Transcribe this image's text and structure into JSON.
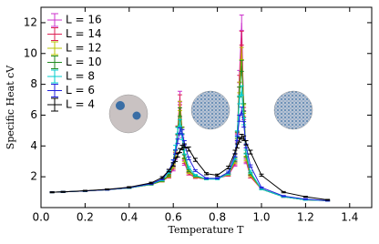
{
  "chart_data": {
    "type": "line",
    "xlabel": "Temperature T",
    "ylabel": "Specific Heat cV",
    "xlim": [
      0,
      1.5
    ],
    "ylim": [
      0,
      13
    ],
    "xticks": [
      {
        "value": 0,
        "label": "0.0"
      },
      {
        "value": 0.2,
        "label": "0.2"
      },
      {
        "value": 0.4,
        "label": "0.4"
      },
      {
        "value": 0.6,
        "label": "0.6"
      },
      {
        "value": 0.8,
        "label": "0.8"
      },
      {
        "value": 1.0,
        "label": "1.0"
      },
      {
        "value": 1.2,
        "label": "1.2"
      },
      {
        "value": 1.4,
        "label": "1.4"
      }
    ],
    "yticks": [
      2,
      4,
      6,
      8,
      10,
      12
    ],
    "legend": "upper-left",
    "x": [
      0.05,
      0.1,
      0.2,
      0.3,
      0.4,
      0.5,
      0.55,
      0.58,
      0.6,
      0.61,
      0.62,
      0.63,
      0.64,
      0.65,
      0.67,
      0.7,
      0.75,
      0.8,
      0.85,
      0.88,
      0.89,
      0.9,
      0.91,
      0.92,
      0.93,
      0.95,
      1.0,
      1.1,
      1.2,
      1.3
    ],
    "series": [
      {
        "name": "L = 16",
        "color": "#cc33cc",
        "values": [
          1.0,
          1.02,
          1.08,
          1.16,
          1.28,
          1.5,
          1.72,
          2.0,
          2.5,
          3.3,
          5.0,
          7.2,
          4.8,
          2.9,
          2.2,
          1.95,
          1.85,
          1.9,
          2.1,
          2.8,
          4.5,
          8.5,
          12.0,
          6.0,
          3.0,
          2.0,
          1.2,
          0.7,
          0.5,
          0.45
        ],
        "errors": [
          0.03,
          0.03,
          0.03,
          0.03,
          0.03,
          0.04,
          0.05,
          0.08,
          0.12,
          0.18,
          0.3,
          0.35,
          0.25,
          0.15,
          0.08,
          0.05,
          0.04,
          0.04,
          0.06,
          0.12,
          0.25,
          0.4,
          0.5,
          0.3,
          0.15,
          0.08,
          0.04,
          0.03,
          0.03,
          0.03
        ]
      },
      {
        "name": "L = 14",
        "color": "#dd2255",
        "values": [
          1.0,
          1.02,
          1.08,
          1.16,
          1.28,
          1.5,
          1.72,
          2.0,
          2.6,
          3.4,
          5.0,
          7.0,
          5.0,
          3.0,
          2.2,
          1.95,
          1.85,
          1.9,
          2.1,
          2.9,
          4.6,
          8.2,
          11.0,
          6.2,
          3.1,
          2.0,
          1.2,
          0.7,
          0.5,
          0.45
        ],
        "errors": [
          0.03,
          0.03,
          0.03,
          0.03,
          0.03,
          0.04,
          0.05,
          0.08,
          0.12,
          0.17,
          0.28,
          0.32,
          0.24,
          0.14,
          0.08,
          0.05,
          0.04,
          0.04,
          0.06,
          0.12,
          0.24,
          0.38,
          0.45,
          0.3,
          0.15,
          0.08,
          0.04,
          0.03,
          0.03,
          0.03
        ]
      },
      {
        "name": "L = 12",
        "color": "#b8c400",
        "values": [
          1.0,
          1.02,
          1.08,
          1.16,
          1.28,
          1.5,
          1.72,
          2.05,
          2.7,
          3.5,
          5.0,
          6.6,
          5.0,
          3.1,
          2.3,
          2.0,
          1.85,
          1.9,
          2.15,
          3.0,
          4.7,
          7.8,
          10.0,
          6.4,
          3.2,
          2.1,
          1.2,
          0.7,
          0.5,
          0.45
        ],
        "errors": [
          0.03,
          0.03,
          0.03,
          0.03,
          0.03,
          0.04,
          0.05,
          0.08,
          0.12,
          0.16,
          0.26,
          0.3,
          0.22,
          0.13,
          0.08,
          0.05,
          0.04,
          0.04,
          0.06,
          0.12,
          0.22,
          0.35,
          0.4,
          0.28,
          0.14,
          0.08,
          0.04,
          0.03,
          0.03,
          0.03
        ]
      },
      {
        "name": "L = 10",
        "color": "#228b22",
        "values": [
          1.0,
          1.02,
          1.08,
          1.16,
          1.28,
          1.5,
          1.75,
          2.1,
          2.8,
          3.6,
          5.0,
          6.2,
          5.0,
          3.3,
          2.4,
          2.05,
          1.85,
          1.9,
          2.2,
          3.1,
          4.7,
          7.5,
          9.2,
          6.5,
          3.4,
          2.2,
          1.2,
          0.7,
          0.5,
          0.45
        ],
        "errors": [
          0.03,
          0.03,
          0.03,
          0.03,
          0.03,
          0.04,
          0.05,
          0.07,
          0.11,
          0.15,
          0.24,
          0.28,
          0.2,
          0.12,
          0.07,
          0.05,
          0.04,
          0.04,
          0.06,
          0.11,
          0.2,
          0.32,
          0.36,
          0.25,
          0.13,
          0.07,
          0.04,
          0.03,
          0.03,
          0.03
        ]
      },
      {
        "name": "L = 8",
        "color": "#00cccc",
        "values": [
          1.0,
          1.02,
          1.08,
          1.16,
          1.28,
          1.52,
          1.8,
          2.3,
          3.0,
          3.9,
          5.0,
          5.5,
          4.6,
          3.6,
          2.6,
          2.1,
          1.85,
          1.85,
          2.2,
          3.2,
          4.8,
          7.0,
          7.6,
          5.6,
          3.6,
          2.3,
          1.2,
          0.7,
          0.5,
          0.45
        ],
        "errors": [
          0.03,
          0.03,
          0.03,
          0.03,
          0.03,
          0.04,
          0.05,
          0.07,
          0.1,
          0.14,
          0.2,
          0.22,
          0.18,
          0.12,
          0.07,
          0.05,
          0.04,
          0.04,
          0.06,
          0.1,
          0.18,
          0.26,
          0.3,
          0.22,
          0.12,
          0.07,
          0.04,
          0.03,
          0.03,
          0.03
        ]
      },
      {
        "name": "L = 6",
        "color": "#2222dd",
        "values": [
          1.0,
          1.02,
          1.08,
          1.16,
          1.29,
          1.55,
          1.85,
          2.4,
          3.0,
          3.6,
          4.3,
          5.0,
          4.9,
          4.2,
          3.2,
          2.4,
          1.9,
          1.9,
          2.3,
          3.4,
          4.5,
          5.8,
          6.3,
          5.4,
          4.0,
          2.7,
          1.3,
          0.75,
          0.55,
          0.45
        ],
        "errors": [
          0.03,
          0.03,
          0.03,
          0.03,
          0.03,
          0.04,
          0.05,
          0.07,
          0.09,
          0.12,
          0.15,
          0.18,
          0.17,
          0.14,
          0.09,
          0.06,
          0.04,
          0.04,
          0.06,
          0.1,
          0.15,
          0.2,
          0.22,
          0.18,
          0.12,
          0.07,
          0.04,
          0.03,
          0.03,
          0.03
        ]
      },
      {
        "name": "L = 4",
        "color": "#000000",
        "values": [
          1.0,
          1.02,
          1.09,
          1.18,
          1.32,
          1.6,
          1.95,
          2.4,
          2.8,
          3.1,
          3.4,
          3.7,
          3.9,
          4.0,
          3.8,
          3.1,
          2.2,
          2.1,
          2.6,
          3.6,
          4.0,
          4.4,
          4.6,
          4.5,
          4.2,
          3.6,
          2.1,
          1.0,
          0.7,
          0.5
        ],
        "errors": [
          0.03,
          0.03,
          0.03,
          0.03,
          0.04,
          0.05,
          0.06,
          0.08,
          0.1,
          0.11,
          0.12,
          0.13,
          0.14,
          0.14,
          0.13,
          0.1,
          0.07,
          0.07,
          0.09,
          0.12,
          0.14,
          0.15,
          0.16,
          0.15,
          0.14,
          0.12,
          0.07,
          0.04,
          0.03,
          0.03
        ]
      }
    ]
  }
}
